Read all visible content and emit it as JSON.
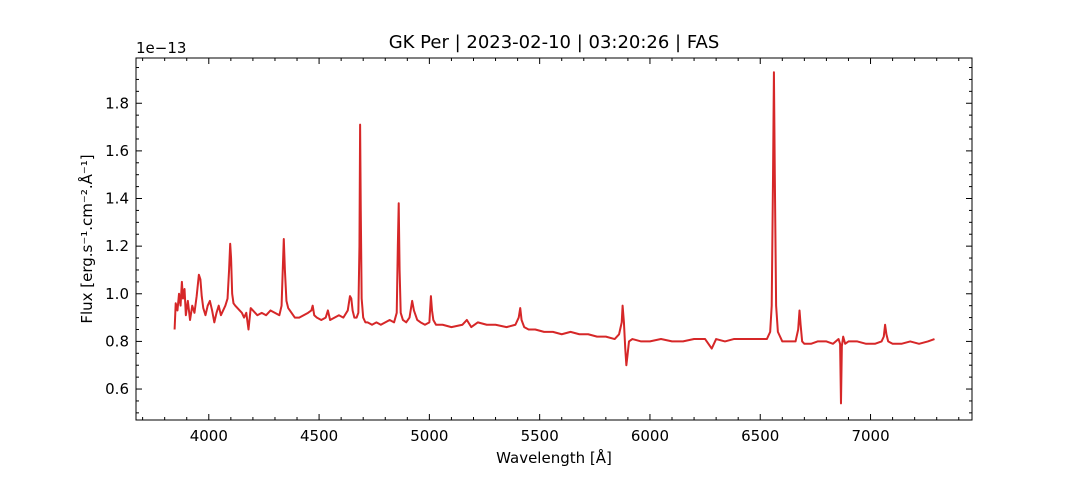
{
  "chart_data": {
    "type": "line",
    "title": "GK Per | 2023-02-10 | 03:20:26 | FAS",
    "xlabel": "Wavelength [Å]",
    "ylabel": "Flux [erg.s⁻¹.cm⁻².Å⁻¹]",
    "y_offset_label": "1e−13",
    "xlim": [
      3670,
      7460
    ],
    "ylim": [
      0.47,
      1.99
    ],
    "x_ticks": [
      4000,
      4500,
      5000,
      5500,
      6000,
      6500,
      7000
    ],
    "y_ticks": [
      0.6,
      0.8,
      1.0,
      1.2,
      1.4,
      1.6,
      1.8
    ],
    "x_tick_labels": [
      "4000",
      "4500",
      "5000",
      "5500",
      "6000",
      "6500",
      "7000"
    ],
    "y_tick_labels": [
      "0.6",
      "0.8",
      "1.0",
      "1.2",
      "1.4",
      "1.6",
      "1.8"
    ],
    "grid": false,
    "line_color": "#d62728",
    "series": [
      {
        "x": [
          3845,
          3850,
          3858,
          3865,
          3872,
          3878,
          3883,
          3890,
          3896,
          3905,
          3915,
          3925,
          3935,
          3945,
          3955,
          3962,
          3968,
          3975,
          3985,
          3995,
          4005,
          4015,
          4025,
          4035,
          4045,
          4055,
          4065,
          4075,
          4085,
          4092,
          4097,
          4101,
          4106,
          4112,
          4120,
          4130,
          4140,
          4150,
          4160,
          4170,
          4180,
          4190,
          4200,
          4210,
          4220,
          4240,
          4260,
          4280,
          4300,
          4320,
          4330,
          4336,
          4340,
          4345,
          4352,
          4360,
          4375,
          4390,
          4410,
          4430,
          4450,
          4465,
          4471,
          4478,
          4490,
          4510,
          4530,
          4540,
          4550,
          4570,
          4590,
          4610,
          4630,
          4640,
          4646,
          4652,
          4660,
          4670,
          4678,
          4683,
          4686,
          4689,
          4693,
          4700,
          4710,
          4720,
          4740,
          4760,
          4780,
          4800,
          4820,
          4840,
          4852,
          4857,
          4861,
          4865,
          4870,
          4880,
          4895,
          4910,
          4922,
          4930,
          4945,
          4960,
          4980,
          5000,
          5007,
          5012,
          5018,
          5030,
          5060,
          5100,
          5150,
          5170,
          5190,
          5220,
          5260,
          5300,
          5350,
          5390,
          5405,
          5412,
          5418,
          5430,
          5450,
          5480,
          5520,
          5560,
          5600,
          5640,
          5680,
          5720,
          5760,
          5800,
          5840,
          5860,
          5872,
          5876,
          5882,
          5888,
          5893,
          5898,
          5905,
          5920,
          5960,
          6000,
          6050,
          6100,
          6150,
          6200,
          6250,
          6280,
          6300,
          6340,
          6380,
          6420,
          6460,
          6500,
          6530,
          6545,
          6552,
          6558,
          6562,
          6566,
          6572,
          6580,
          6600,
          6630,
          6660,
          6672,
          6678,
          6683,
          6690,
          6700,
          6730,
          6760,
          6800,
          6830,
          6855,
          6862,
          6866,
          6870,
          6876,
          6885,
          6900,
          6940,
          6980,
          7020,
          7050,
          7060,
          7066,
          7072,
          7080,
          7100,
          7140,
          7180,
          7220,
          7260,
          7290
        ],
        "y": [
          0.85,
          0.96,
          0.93,
          1.0,
          0.95,
          1.05,
          0.98,
          1.02,
          0.91,
          0.97,
          0.89,
          0.95,
          0.92,
          0.99,
          1.08,
          1.06,
          0.99,
          0.94,
          0.91,
          0.95,
          0.97,
          0.93,
          0.88,
          0.92,
          0.95,
          0.91,
          0.93,
          0.95,
          0.98,
          1.1,
          1.21,
          1.15,
          1.0,
          0.96,
          0.95,
          0.94,
          0.93,
          0.92,
          0.9,
          0.92,
          0.85,
          0.94,
          0.93,
          0.92,
          0.91,
          0.92,
          0.91,
          0.93,
          0.92,
          0.91,
          0.95,
          1.12,
          1.23,
          1.1,
          0.97,
          0.94,
          0.92,
          0.9,
          0.9,
          0.91,
          0.92,
          0.93,
          0.95,
          0.91,
          0.9,
          0.89,
          0.9,
          0.93,
          0.89,
          0.9,
          0.91,
          0.9,
          0.93,
          0.99,
          0.98,
          0.93,
          0.9,
          0.9,
          0.92,
          1.2,
          1.71,
          1.35,
          0.98,
          0.9,
          0.88,
          0.88,
          0.87,
          0.88,
          0.87,
          0.88,
          0.89,
          0.88,
          0.92,
          1.2,
          1.38,
          1.1,
          0.92,
          0.89,
          0.88,
          0.9,
          0.97,
          0.93,
          0.89,
          0.88,
          0.87,
          0.88,
          0.99,
          0.93,
          0.89,
          0.87,
          0.87,
          0.86,
          0.87,
          0.89,
          0.86,
          0.88,
          0.87,
          0.87,
          0.86,
          0.87,
          0.9,
          0.94,
          0.89,
          0.86,
          0.85,
          0.85,
          0.84,
          0.84,
          0.83,
          0.84,
          0.83,
          0.83,
          0.82,
          0.82,
          0.81,
          0.83,
          0.88,
          0.95,
          0.88,
          0.77,
          0.7,
          0.74,
          0.8,
          0.81,
          0.8,
          0.8,
          0.81,
          0.8,
          0.8,
          0.81,
          0.81,
          0.77,
          0.81,
          0.8,
          0.81,
          0.81,
          0.81,
          0.81,
          0.81,
          0.84,
          0.95,
          1.5,
          1.93,
          1.5,
          0.95,
          0.84,
          0.8,
          0.8,
          0.8,
          0.85,
          0.93,
          0.87,
          0.8,
          0.79,
          0.79,
          0.8,
          0.8,
          0.79,
          0.81,
          0.79,
          0.54,
          0.78,
          0.82,
          0.79,
          0.8,
          0.8,
          0.79,
          0.79,
          0.8,
          0.82,
          0.87,
          0.83,
          0.8,
          0.79,
          0.79,
          0.8,
          0.79,
          0.8,
          0.81
        ]
      }
    ]
  }
}
